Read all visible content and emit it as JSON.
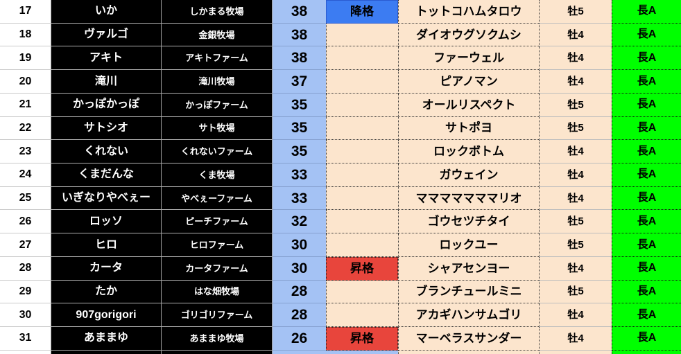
{
  "colors": {
    "black": "#000000",
    "score_bg": "#a4c2f4",
    "demote_bg": "#3c7cf2",
    "promote_bg": "#e8453c",
    "row_bg": "#fce5cd",
    "grade_bg": "#00ff00",
    "grid": "#a6a6a6",
    "text": "#000000"
  },
  "table": {
    "status_labels": {
      "demote": "降格",
      "promote": "昇格"
    },
    "rows": [
      {
        "rank": "17",
        "name": "いか",
        "farm": "しかまる牧場",
        "score": "38",
        "status": "降格",
        "horse": "トットコハムタロウ",
        "sex_age": "牡5",
        "grade": "長A"
      },
      {
        "rank": "18",
        "name": "ヴァルゴ",
        "farm": "金銀牧場",
        "score": "38",
        "status": "",
        "horse": "ダイオウグソクムシ",
        "sex_age": "牡4",
        "grade": "長A"
      },
      {
        "rank": "19",
        "name": "アキト",
        "farm": "アキトファーム",
        "score": "38",
        "status": "",
        "horse": "ファーウェル",
        "sex_age": "牡4",
        "grade": "長A"
      },
      {
        "rank": "20",
        "name": "滝川",
        "farm": "滝川牧場",
        "score": "37",
        "status": "",
        "horse": "ピアノマン",
        "sex_age": "牡4",
        "grade": "長A"
      },
      {
        "rank": "21",
        "name": "かっぽかっぽ",
        "farm": "かっぽファーム",
        "score": "35",
        "status": "",
        "horse": "オールリスペクト",
        "sex_age": "牡5",
        "grade": "長A"
      },
      {
        "rank": "22",
        "name": "サトシオ",
        "farm": "サト牧場",
        "score": "35",
        "status": "",
        "horse": "サトポヨ",
        "sex_age": "牡5",
        "grade": "長A"
      },
      {
        "rank": "23",
        "name": "くれない",
        "farm": "くれないファーム",
        "score": "35",
        "status": "",
        "horse": "ロックボトム",
        "sex_age": "牡4",
        "grade": "長A"
      },
      {
        "rank": "24",
        "name": "くまだんな",
        "farm": "くま牧場",
        "score": "33",
        "status": "",
        "horse": "ガウェイン",
        "sex_age": "牡4",
        "grade": "長A"
      },
      {
        "rank": "25",
        "name": "いぎなりやべぇー",
        "farm": "やべぇーファーム",
        "score": "33",
        "status": "",
        "horse": "マママママママリオ",
        "sex_age": "牡4",
        "grade": "長A"
      },
      {
        "rank": "26",
        "name": "ロッソ",
        "farm": "ピーチファーム",
        "score": "32",
        "status": "",
        "horse": "ゴウセツチタイ",
        "sex_age": "牡5",
        "grade": "長A"
      },
      {
        "rank": "27",
        "name": "ヒロ",
        "farm": "ヒロファーム",
        "score": "30",
        "status": "",
        "horse": "ロックユー",
        "sex_age": "牡5",
        "grade": "長A"
      },
      {
        "rank": "28",
        "name": "カータ",
        "farm": "カータファーム",
        "score": "30",
        "status": "昇格",
        "horse": "シャアセンヨー",
        "sex_age": "牡4",
        "grade": "長A"
      },
      {
        "rank": "29",
        "name": "たか",
        "farm": "はな畑牧場",
        "score": "28",
        "status": "",
        "horse": "ブランチュールミニ",
        "sex_age": "牡5",
        "grade": "長A"
      },
      {
        "rank": "30",
        "name": "907gorigori",
        "farm": "ゴリゴリファーム",
        "score": "28",
        "status": "",
        "horse": "アカギハンサムゴリ",
        "sex_age": "牡4",
        "grade": "長A"
      },
      {
        "rank": "31",
        "name": "あままゆ",
        "farm": "あままゆ牧場",
        "score": "26",
        "status": "昇格",
        "horse": "マーベラスサンダー",
        "sex_age": "牡4",
        "grade": "長A"
      }
    ]
  }
}
